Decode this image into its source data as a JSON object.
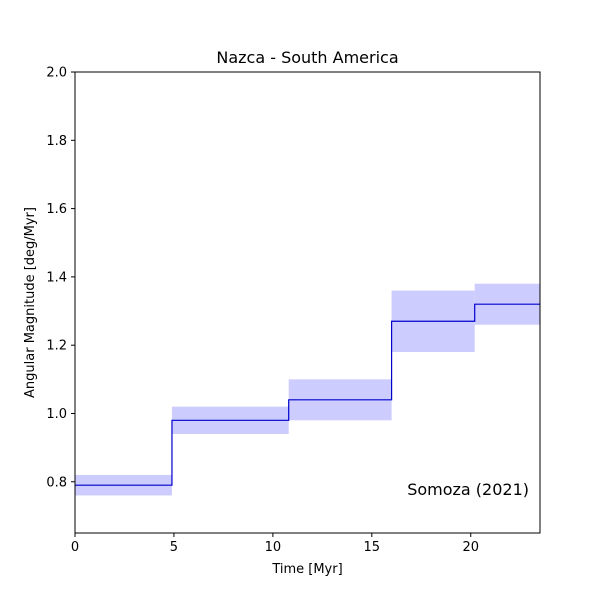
{
  "chart_data": {
    "type": "step",
    "title": "Nazca - South America",
    "xlabel": "Time [Myr]",
    "ylabel": "Angular Magnitude [deg/Myr]",
    "xlim": [
      0,
      23.5
    ],
    "ylim": [
      0.65,
      2.0
    ],
    "xticks": [
      0,
      5,
      10,
      15,
      20
    ],
    "yticks": [
      0.8,
      1.0,
      1.2,
      1.4,
      1.6,
      1.8,
      2.0
    ],
    "xtick_labels": [
      "0",
      "5",
      "10",
      "15",
      "20"
    ],
    "ytick_labels": [
      "0.8",
      "1.0",
      "1.2",
      "1.4",
      "1.6",
      "1.8",
      "2.0"
    ],
    "grid": false,
    "annotation": "Somoza (2021)",
    "line_color": "#0000cc",
    "band_color": "#ccccff",
    "segments": [
      {
        "x0": 0.0,
        "x1": 4.9,
        "value": 0.79,
        "lower": 0.76,
        "upper": 0.82
      },
      {
        "x0": 4.9,
        "x1": 10.8,
        "value": 0.98,
        "lower": 0.94,
        "upper": 1.02
      },
      {
        "x0": 10.8,
        "x1": 16.0,
        "value": 1.04,
        "lower": 0.98,
        "upper": 1.1
      },
      {
        "x0": 16.0,
        "x1": 20.2,
        "value": 1.27,
        "lower": 1.18,
        "upper": 1.36
      },
      {
        "x0": 20.2,
        "x1": 23.5,
        "value": 1.32,
        "lower": 1.26,
        "upper": 1.38
      }
    ]
  }
}
